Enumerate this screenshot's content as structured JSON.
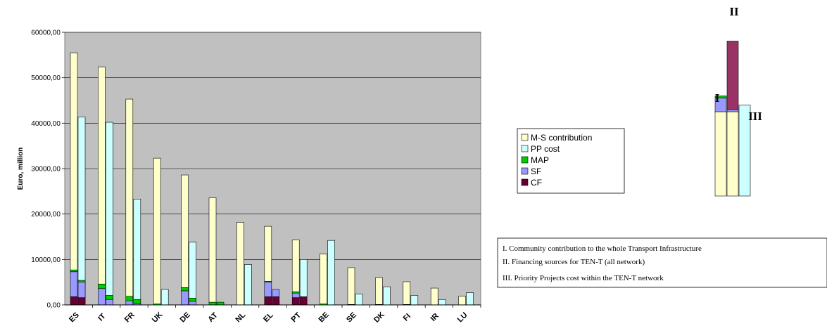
{
  "chart_data": {
    "type": "bar",
    "ylabel": "Euro, million",
    "ylim": [
      0,
      60000
    ],
    "yticks": [
      "0,00",
      "10000,00",
      "20000,00",
      "30000,00",
      "40000,00",
      "50000,00",
      "60000,00"
    ],
    "grid": true,
    "legend_position": "right",
    "categories": [
      "ES",
      "IT",
      "FR",
      "UK",
      "DE",
      "AT",
      "NL",
      "EL",
      "PT",
      "BE",
      "SE",
      "DK",
      "FI",
      "IR",
      "LU"
    ],
    "stacked_series": [
      {
        "name": "CF",
        "color": "#660033",
        "values": [
          1800,
          0,
          0,
          0,
          0,
          0,
          0,
          1800,
          1600,
          0,
          0,
          0,
          0,
          0,
          0
        ]
      },
      {
        "name": "SF",
        "color": "#9999ff",
        "values": [
          5500,
          3600,
          900,
          0,
          3100,
          0,
          0,
          3200,
          1000,
          0,
          0,
          0,
          0,
          0,
          0
        ]
      },
      {
        "name": "MAP",
        "color": "#00cc00",
        "values": [
          400,
          1000,
          1000,
          200,
          700,
          600,
          0,
          200,
          300,
          200,
          100,
          100,
          100,
          0,
          0
        ]
      },
      {
        "name": "M-S contribution",
        "color": "#ffffcc",
        "values": [
          47800,
          47800,
          43400,
          32100,
          24800,
          23000,
          18200,
          12100,
          11400,
          11000,
          8100,
          5900,
          5000,
          3700,
          1900
        ]
      }
    ],
    "second_bar": {
      "stack_under": [
        {
          "name": "CF",
          "values": [
            1600,
            0,
            0,
            0,
            0,
            0,
            0,
            1800,
            1800,
            0,
            0,
            0,
            0,
            0,
            0
          ]
        },
        {
          "name": "SF",
          "values": [
            3400,
            1200,
            300,
            0,
            800,
            0,
            0,
            1600,
            0,
            0,
            0,
            0,
            0,
            0,
            0
          ]
        },
        {
          "name": "MAP",
          "values": [
            400,
            900,
            900,
            0,
            700,
            600,
            0,
            0,
            0,
            0,
            0,
            0,
            0,
            0,
            0
          ]
        }
      ]
    },
    "pp_series": {
      "name": "PP cost",
      "color": "#ccffff",
      "values": [
        41400,
        40200,
        23300,
        3400,
        13800,
        400,
        8900,
        900,
        10000,
        14200,
        2400,
        4000,
        2100,
        1200,
        2700
      ]
    },
    "legend": [
      "M-S contribution",
      "PP cost",
      "MAP",
      "SF",
      "CF"
    ]
  },
  "inset": {
    "labels": [
      "I",
      "II",
      "III"
    ],
    "bar1": [
      {
        "name": "M-S contribution",
        "value": 32000
      },
      {
        "name": "SF",
        "value": 5200
      },
      {
        "name": "MAP",
        "value": 800
      }
    ],
    "bar2": [
      {
        "name": "M-S contribution",
        "value": 32000
      },
      {
        "name": "SF",
        "value": 800
      },
      {
        "name": "CF",
        "value": 26000
      }
    ],
    "bar3": [
      {
        "name": "PP cost",
        "value": 34500
      }
    ],
    "colors": {
      "CF": "#993366",
      "SF": "#9999ff",
      "MAP": "#00cc00",
      "M-S contribution": "#ffffcc",
      "PP cost": "#ccffff"
    }
  },
  "notes": [
    "I. Community contribution to the whole Transport Infrastructure",
    "II. Financing sources for TEN-T (all network)",
    "III. Priority Projects cost within the TEN-T network"
  ]
}
